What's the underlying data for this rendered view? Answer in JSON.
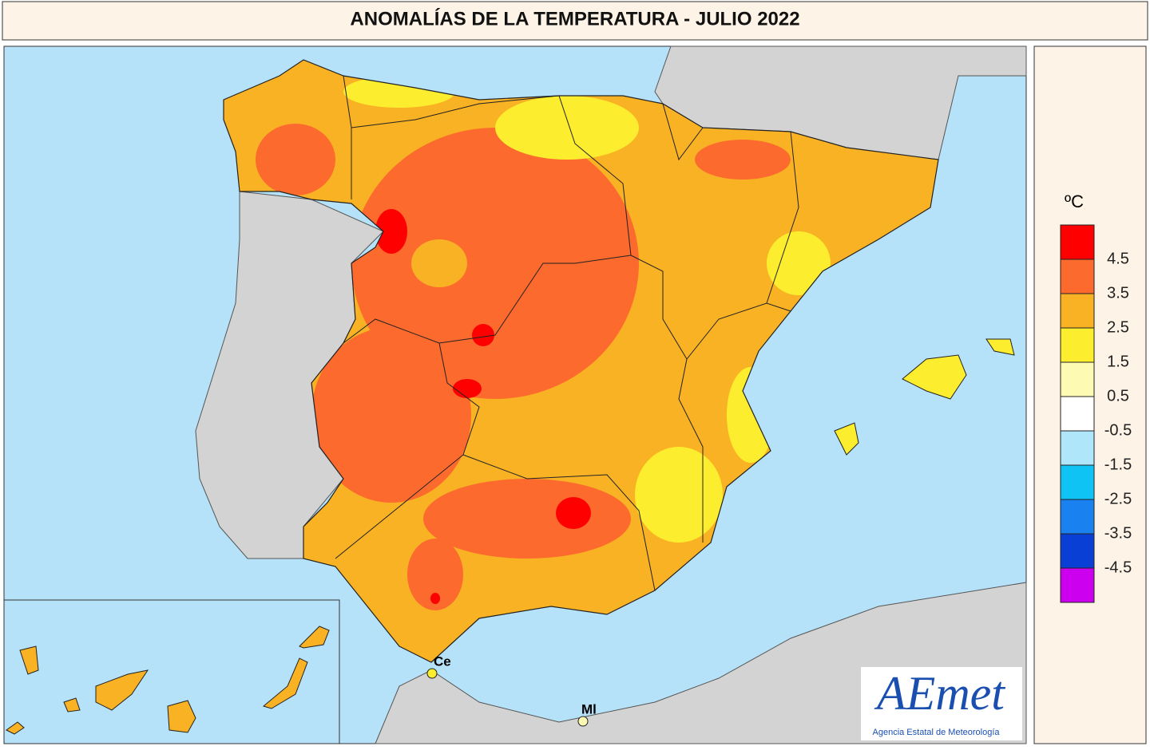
{
  "title": "ANOMALÍAS DE LA TEMPERATURA - JULIO 2022",
  "legend": {
    "unit": "ºC",
    "colors": [
      "#ff0000",
      "#fc6a2e",
      "#f9b224",
      "#fcee2e",
      "#fdfab4",
      "#ffffff",
      "#b0e6fa",
      "#0fc4f5",
      "#1a82f0",
      "#0a3fd6",
      "#cc00ee"
    ],
    "labels": [
      4.5,
      3.5,
      2.5,
      1.5,
      0.5,
      -0.5,
      -1.5,
      -2.5,
      -3.5,
      -4.5
    ]
  },
  "places": [
    {
      "label": "Ce"
    },
    {
      "label": "Ml"
    }
  ],
  "logo": {
    "name": "AEmet",
    "subtitle": "Agencia Estatal de Meteorología"
  }
}
